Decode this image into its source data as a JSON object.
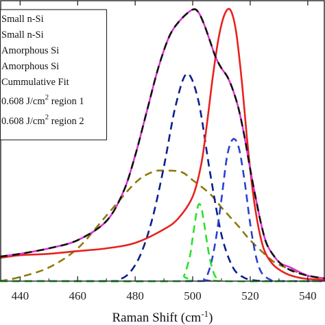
{
  "chart_data": {
    "type": "line",
    "title": "",
    "xlabel_main": "Raman Shift (cm",
    "xlabel_sup": "-1",
    "xlabel_end": ")",
    "ylabel": "",
    "xlim": [
      433,
      546
    ],
    "ylim": [
      0,
      1.015
    ],
    "grid": false,
    "legend_position": "top-left",
    "x_ticks": [
      440,
      460,
      480,
      500,
      520,
      540
    ],
    "series": [
      {
        "name": "Small n-Si",
        "color": "#0a1f8c",
        "dash": "dashed",
        "x": [
          433,
          470,
          474,
          478,
          482,
          486,
          490,
          494,
          498,
          502,
          506,
          510,
          514,
          518,
          522,
          526,
          530,
          546
        ],
        "y": [
          0.0,
          0.0,
          0.004,
          0.03,
          0.1,
          0.23,
          0.42,
          0.64,
          0.76,
          0.66,
          0.4,
          0.17,
          0.05,
          0.012,
          0.002,
          0.0,
          0.0,
          0.0
        ]
      },
      {
        "name": "Small n-Si",
        "color": "#2741d4",
        "dash": "dashed",
        "x": [
          433,
          500,
          504,
          506,
          508,
          510,
          512,
          514,
          516,
          518,
          520,
          522,
          524,
          527,
          530,
          546
        ],
        "y": [
          0.0,
          0.0,
          0.008,
          0.05,
          0.15,
          0.3,
          0.46,
          0.52,
          0.49,
          0.37,
          0.21,
          0.09,
          0.03,
          0.005,
          0.0,
          0.0
        ]
      },
      {
        "name": "Amorphous Si",
        "color": "#8c7a0a",
        "dash": "dashed",
        "x": [
          433,
          440,
          450,
          460,
          470,
          480,
          486,
          490,
          496,
          500,
          506,
          510,
          516,
          520,
          526,
          530,
          540,
          546
        ],
        "y": [
          0.0,
          0.015,
          0.05,
          0.12,
          0.24,
          0.36,
          0.4,
          0.405,
          0.4,
          0.37,
          0.32,
          0.27,
          0.2,
          0.15,
          0.09,
          0.06,
          0.02,
          0.01
        ]
      },
      {
        "name": "Amorphous Si",
        "color": "#2ae02a",
        "dash": "dashed",
        "x": [
          433,
          495,
          497,
          499,
          500,
          501,
          502,
          503,
          504,
          505,
          506,
          507,
          508,
          510,
          546
        ],
        "y": [
          0.0,
          0.0,
          0.02,
          0.09,
          0.16,
          0.23,
          0.28,
          0.27,
          0.21,
          0.14,
          0.08,
          0.04,
          0.015,
          0.0,
          0.0
        ]
      },
      {
        "name": "Cummulative Fit",
        "color": "#111111",
        "dash": "dashed",
        "x": [
          433,
          440,
          450,
          460,
          470,
          476,
          480,
          484,
          488,
          492,
          496,
          500,
          502,
          504,
          506,
          508,
          510,
          512,
          514,
          516,
          518,
          520,
          522,
          524,
          526,
          530,
          534,
          540,
          546
        ],
        "y": [
          0.09,
          0.1,
          0.12,
          0.15,
          0.22,
          0.33,
          0.46,
          0.62,
          0.78,
          0.9,
          0.96,
          0.995,
          0.985,
          0.94,
          0.88,
          0.82,
          0.78,
          0.75,
          0.7,
          0.63,
          0.53,
          0.41,
          0.3,
          0.2,
          0.13,
          0.07,
          0.04,
          0.02,
          0.01
        ]
      },
      {
        "name": "0.608 J/cm² region 1",
        "color": "#e030d8",
        "dash": "solid",
        "x": [
          433,
          440,
          450,
          460,
          470,
          476,
          480,
          484,
          488,
          492,
          496,
          500,
          502,
          504,
          506,
          508,
          510,
          512,
          514,
          516,
          518,
          520,
          522,
          524,
          526,
          530,
          534,
          540,
          546
        ],
        "y": [
          0.09,
          0.1,
          0.12,
          0.15,
          0.22,
          0.33,
          0.46,
          0.62,
          0.78,
          0.9,
          0.96,
          0.995,
          0.985,
          0.94,
          0.88,
          0.82,
          0.78,
          0.75,
          0.7,
          0.63,
          0.53,
          0.41,
          0.3,
          0.2,
          0.13,
          0.07,
          0.05,
          0.02,
          0.01
        ]
      },
      {
        "name": "0.608 J/cm² region 2",
        "color": "#e8201c",
        "dash": "solid",
        "x": [
          433,
          440,
          450,
          460,
          470,
          480,
          490,
          495,
          500,
          503,
          505,
          507,
          509,
          511,
          513,
          515,
          517,
          519,
          521,
          523,
          525,
          528,
          532,
          536,
          540,
          546
        ],
        "y": [
          0.085,
          0.095,
          0.1,
          0.11,
          0.12,
          0.14,
          0.19,
          0.23,
          0.31,
          0.43,
          0.58,
          0.75,
          0.89,
          0.975,
          0.995,
          0.92,
          0.74,
          0.51,
          0.32,
          0.19,
          0.11,
          0.06,
          0.03,
          0.015,
          0.008,
          0.004
        ]
      }
    ]
  },
  "legend": {
    "items": [
      {
        "text": "Small n-Si"
      },
      {
        "text": "Small n-Si"
      },
      {
        "text": "Amorphous Si"
      },
      {
        "text": "Amorphous Si"
      },
      {
        "text": "Cummulative Fit"
      },
      {
        "pre": "0.608 J/cm",
        "sup": "2",
        "post": "  region 1"
      },
      {
        "pre": "0.608 J/cm",
        "sup": "2",
        "post": "  region 2"
      }
    ]
  }
}
